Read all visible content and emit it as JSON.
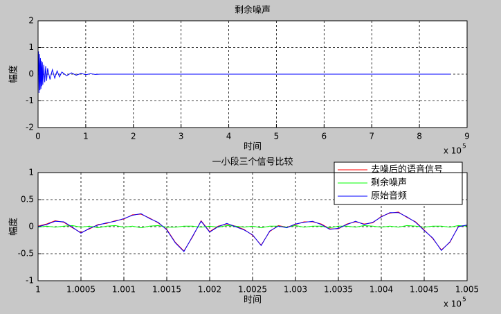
{
  "chart_data": [
    {
      "type": "line",
      "title": "剩余噪声",
      "xlabel": "时间",
      "ylabel": "幅度",
      "x_exponent": {
        "base": "x 10",
        "power": "5"
      },
      "x": [
        0,
        0.01,
        0.02,
        0.03,
        0.04,
        0.05,
        0.06,
        0.07,
        0.08,
        0.09,
        0.1,
        0.12,
        0.14,
        0.16,
        0.18,
        0.2,
        0.25,
        0.3,
        0.35,
        0.4,
        0.45,
        0.5,
        0.6,
        0.7,
        0.8,
        0.9,
        1.0,
        1.1,
        1.2,
        1.3,
        2,
        3,
        4,
        5,
        6,
        7,
        8,
        8.65
      ],
      "values": [
        0.1,
        0.85,
        -0.7,
        0.75,
        -0.6,
        0.6,
        -0.55,
        0.5,
        -0.45,
        0.45,
        -0.4,
        0.35,
        -0.3,
        0.3,
        -0.25,
        0.22,
        -0.2,
        0.17,
        -0.15,
        0.12,
        -0.1,
        0.08,
        -0.06,
        0.05,
        -0.04,
        0.03,
        -0.02,
        0.015,
        -0.01,
        0,
        0,
        0,
        0,
        0,
        0,
        0,
        0,
        0
      ],
      "color": "#0000ff",
      "xlim": [
        0,
        9
      ],
      "xticks": [
        0,
        1,
        2,
        3,
        4,
        5,
        6,
        7,
        8,
        9
      ],
      "ylim": [
        -2,
        2
      ],
      "yticks": [
        -2,
        -1,
        0,
        1,
        2
      ],
      "grid": true
    },
    {
      "type": "line",
      "title": "一小段三个信号比较",
      "xlabel": "时间",
      "ylabel": "幅度",
      "x_exponent": {
        "base": "x 10",
        "power": "5"
      },
      "x": [
        1,
        1.0001,
        1.0002,
        1.0003,
        1.0004,
        1.0005,
        1.0006,
        1.0007,
        1.0008,
        1.0009,
        1.001,
        1.0011,
        1.0012,
        1.0013,
        1.0014,
        1.0015,
        1.0016,
        1.0017,
        1.0018,
        1.0019,
        1.002,
        1.0021,
        1.0022,
        1.0023,
        1.0024,
        1.0025,
        1.0026,
        1.0027,
        1.0028,
        1.0029,
        1.003,
        1.0031,
        1.0032,
        1.0033,
        1.0034,
        1.0035,
        1.0036,
        1.0037,
        1.0038,
        1.0039,
        1.004,
        1.0041,
        1.0042,
        1.0043,
        1.0044,
        1.0045,
        1.0046,
        1.0047,
        1.0048,
        1.0049,
        1.005
      ],
      "series": [
        {
          "name": "去噪后的语音信号",
          "color": "#ff0000",
          "values": [
            0.01,
            0.05,
            0.11,
            0.08,
            -0.02,
            -0.11,
            -0.04,
            0.04,
            0.06,
            0.11,
            0.14,
            0.22,
            0.23,
            0.16,
            0.07,
            -0.05,
            -0.29,
            -0.45,
            -0.19,
            0.11,
            -0.09,
            0.01,
            0.05,
            0.01,
            -0.05,
            -0.16,
            -0.34,
            -0.09,
            0.02,
            -0.01,
            0.04,
            0.09,
            0.09,
            0.05,
            -0.04,
            -0.04,
            0.05,
            0.09,
            0.05,
            0.07,
            0.19,
            0.25,
            0.27,
            0.17,
            0.09,
            -0.06,
            -0.22,
            -0.43,
            -0.29,
            0.01,
            0.02
          ]
        },
        {
          "name": "剩余噪声",
          "color": "#00ff00",
          "values": [
            -0.01,
            0.01,
            -0.01,
            0.01,
            0.02,
            -0.01,
            0.01,
            -0.02,
            0.01,
            0.02,
            -0.01,
            0.01,
            -0.02,
            0.01,
            0.02,
            -0.01,
            -0.01,
            0.01,
            0.01,
            -0.01,
            0.01,
            -0.01,
            0.02,
            0.01,
            -0.01,
            0.01,
            -0.02,
            0.01,
            0.01,
            -0.01,
            0.02,
            -0.01,
            0.01,
            0.01,
            -0.02,
            0.01,
            0.01,
            -0.01,
            0.02,
            0.01,
            -0.01,
            0.01,
            -0.01,
            0.02,
            0.01,
            -0.01,
            0.01,
            0.01,
            -0.01,
            0.02,
            0.01
          ]
        },
        {
          "name": "原始音频",
          "color": "#0000ff",
          "values": [
            0,
            0.04,
            0.1,
            0.09,
            -0.01,
            -0.12,
            -0.03,
            0.03,
            0.07,
            0.1,
            0.15,
            0.21,
            0.24,
            0.15,
            0.08,
            -0.06,
            -0.3,
            -0.46,
            -0.18,
            0.1,
            -0.1,
            0,
            0.06,
            0,
            -0.06,
            -0.15,
            -0.35,
            -0.08,
            0.01,
            -0.02,
            0.05,
            0.08,
            0.1,
            0.04,
            -0.05,
            -0.03,
            0.04,
            0.1,
            0.04,
            0.08,
            0.18,
            0.26,
            0.26,
            0.18,
            0.08,
            -0.07,
            -0.21,
            -0.44,
            -0.28,
            0,
            0.03
          ]
        }
      ],
      "legend": "northeast",
      "xlim": [
        1,
        1.005
      ],
      "xticks": [
        1,
        1.0005,
        1.001,
        1.0015,
        1.002,
        1.0025,
        1.003,
        1.0035,
        1.004,
        1.0045,
        1.005
      ],
      "ylim": [
        -1,
        1
      ],
      "yticks": [
        -1,
        -0.5,
        0,
        0.5,
        1
      ],
      "grid": true
    }
  ]
}
